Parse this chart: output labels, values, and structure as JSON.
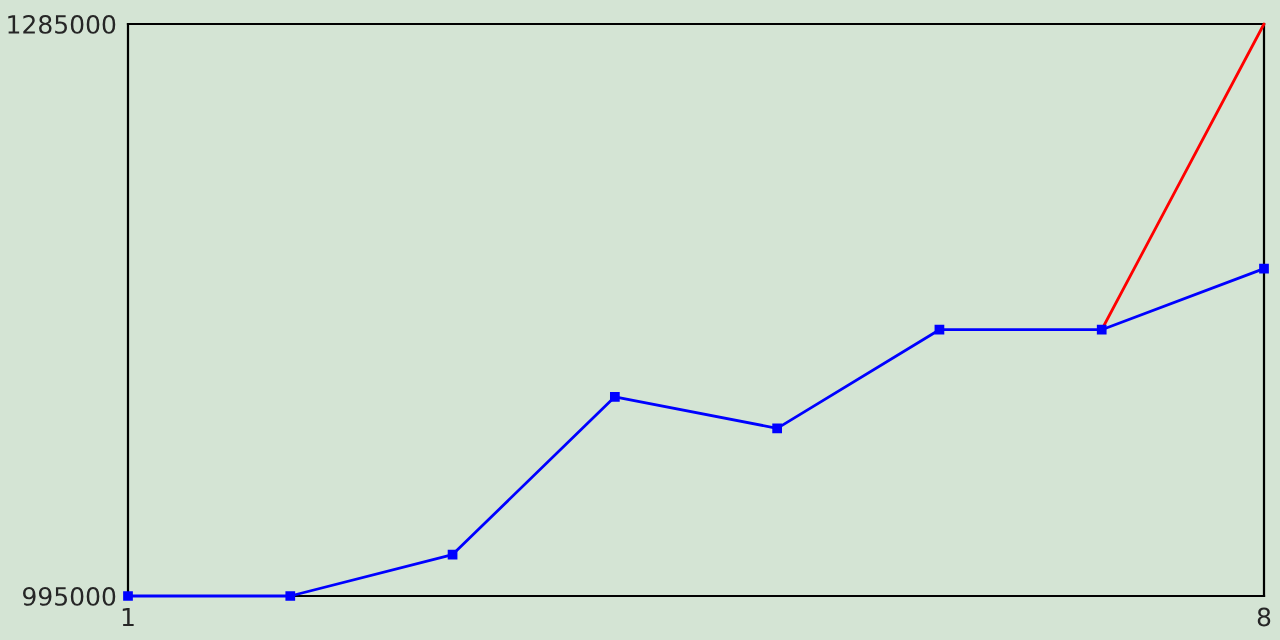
{
  "chart_data": {
    "type": "line",
    "x": [
      1,
      2,
      3,
      4,
      5,
      6,
      7,
      8
    ],
    "series": [
      {
        "color": "#ff0000",
        "values": [
          null,
          null,
          null,
          null,
          null,
          null,
          1130000,
          1285000
        ],
        "marker": "none"
      },
      {
        "color": "#0000ff",
        "values": [
          995000,
          995000,
          1016000,
          1096000,
          1080000,
          1130000,
          1130000,
          1161000
        ],
        "marker": "square"
      }
    ],
    "xlim": [
      1,
      8
    ],
    "xticks": [
      1,
      8
    ],
    "ylim": [
      995000,
      1285000
    ],
    "yticks": [
      995000,
      1285000
    ],
    "legend": false,
    "line_style": "solid"
  }
}
